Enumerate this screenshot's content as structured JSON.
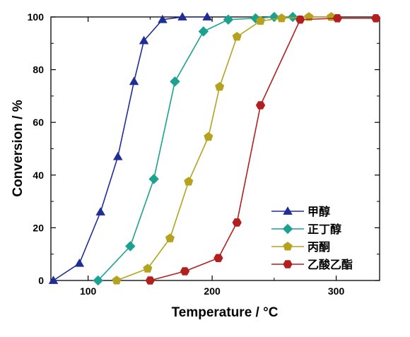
{
  "chart_data": {
    "type": "line",
    "xlabel": "Temperature / °C",
    "ylabel": "Conversion / %",
    "xlim": [
      70,
      335
    ],
    "ylim": [
      0,
      100
    ],
    "xticks": [
      100,
      200,
      300
    ],
    "yticks": [
      0,
      20,
      40,
      60,
      80,
      100
    ],
    "grid": false,
    "legend_position": "bottom-right",
    "series": [
      {
        "name": "甲醇",
        "marker": "triangle",
        "color": "#1f2d96",
        "x": [
          72,
          93,
          110,
          124,
          137,
          145,
          160,
          176,
          196
        ],
        "y": [
          0,
          6.5,
          26,
          47,
          75.5,
          91,
          99,
          100,
          100
        ]
      },
      {
        "name": "正丁醇",
        "marker": "diamond",
        "color": "#1aa190",
        "x": [
          108,
          134,
          153,
          170,
          193,
          213,
          235,
          250,
          265
        ],
        "y": [
          0,
          13,
          38.5,
          75.5,
          94.5,
          99,
          99.5,
          100,
          100
        ]
      },
      {
        "name": "丙酮",
        "marker": "pentagon",
        "color": "#b5a21e",
        "x": [
          123,
          148,
          166,
          181,
          197,
          206,
          220,
          239,
          256,
          278,
          296
        ],
        "y": [
          0,
          4.5,
          16,
          37.5,
          54.5,
          73.5,
          92.5,
          98.5,
          99.5,
          100,
          100
        ]
      },
      {
        "name": "乙酸乙酯",
        "marker": "hexagon",
        "color": "#b21f1f",
        "x": [
          150,
          178,
          205,
          220,
          239,
          271,
          301,
          332
        ],
        "y": [
          0,
          3.5,
          8.5,
          22,
          66.5,
          99,
          99.5,
          99.5
        ]
      }
    ]
  }
}
